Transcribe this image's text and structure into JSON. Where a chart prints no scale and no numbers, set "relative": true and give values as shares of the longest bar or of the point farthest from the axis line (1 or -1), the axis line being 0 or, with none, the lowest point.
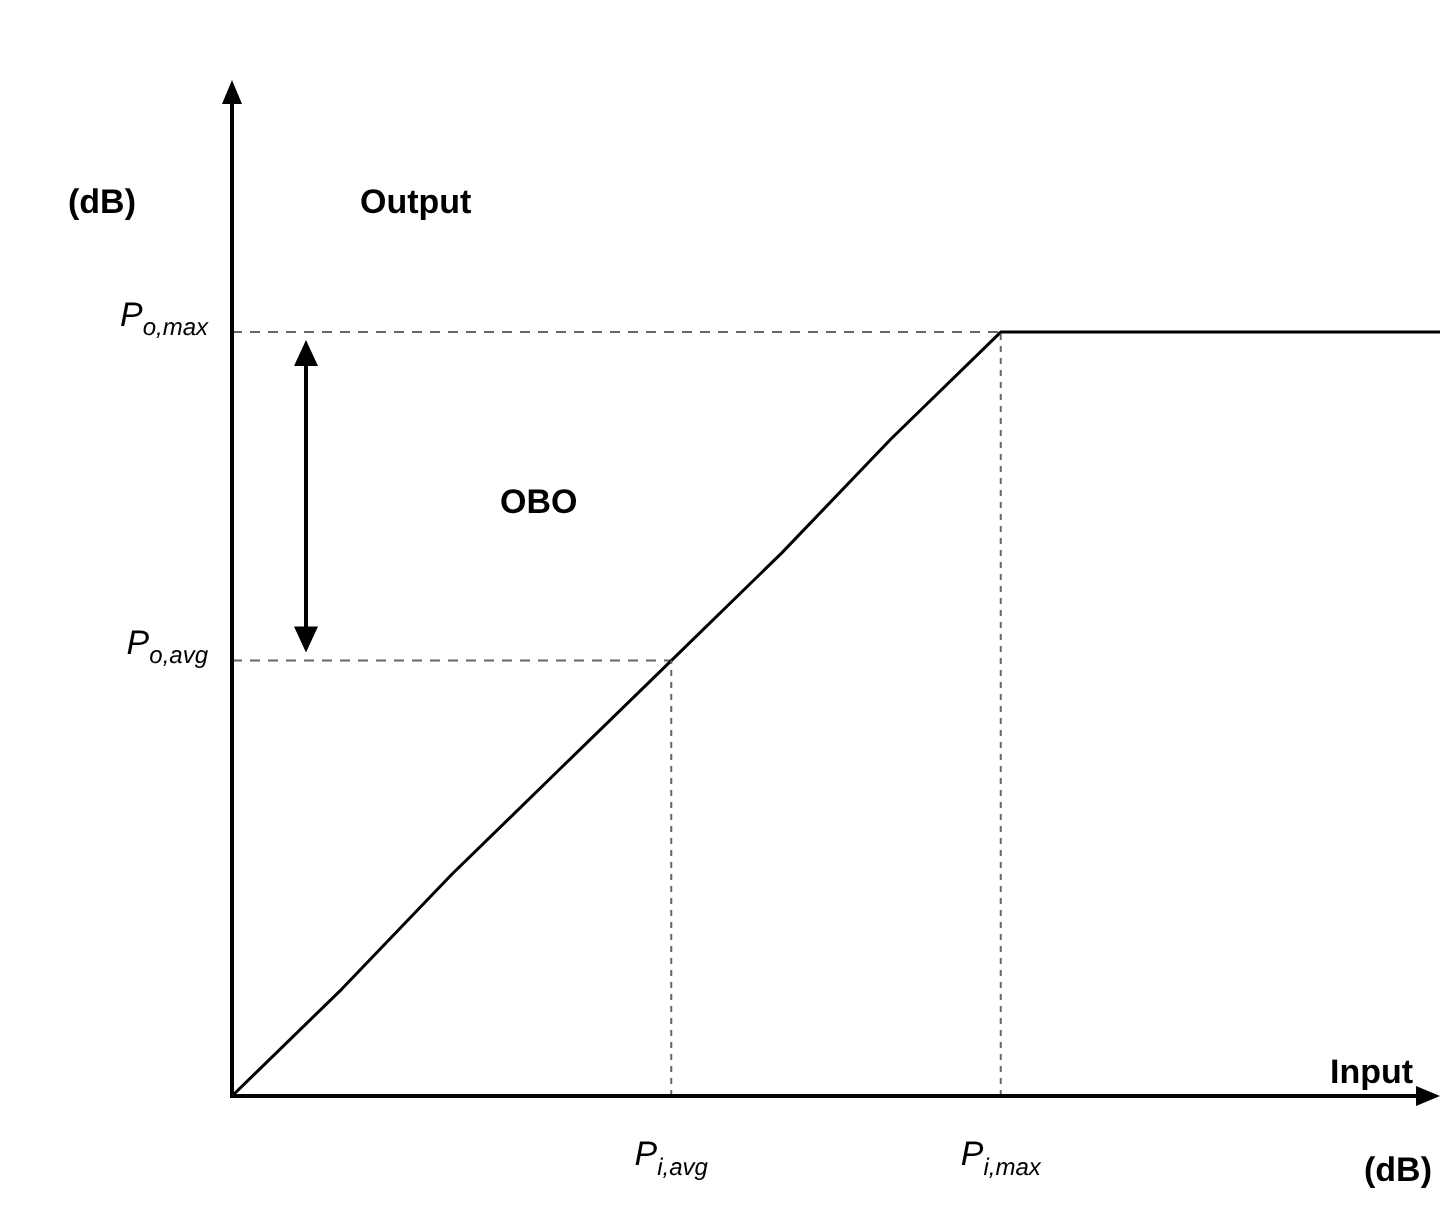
{
  "chart_data": {
    "type": "line",
    "relative": true,
    "xlabel": "Input",
    "ylabel": "Output",
    "annotations": [
      "OBO",
      "(dB)",
      "(dB)",
      "P$_{o,max}$",
      "P$_{o,avg}$"
    ],
    "categories": [
      null,
      null,
      null,
      null,
      "P$_{i,avg}$",
      null,
      null,
      "P$_{i,max}$",
      null,
      null,
      null,
      null
    ],
    "series": [
      {
        "color": "#000000",
        "values": [
          0,
          0.14,
          0.29,
          0.43,
          0.57,
          0.71,
          0.86,
          1,
          1,
          1,
          1,
          1
        ]
      }
    ],
    "marker": "none",
    "line_style": "solid"
  }
}
